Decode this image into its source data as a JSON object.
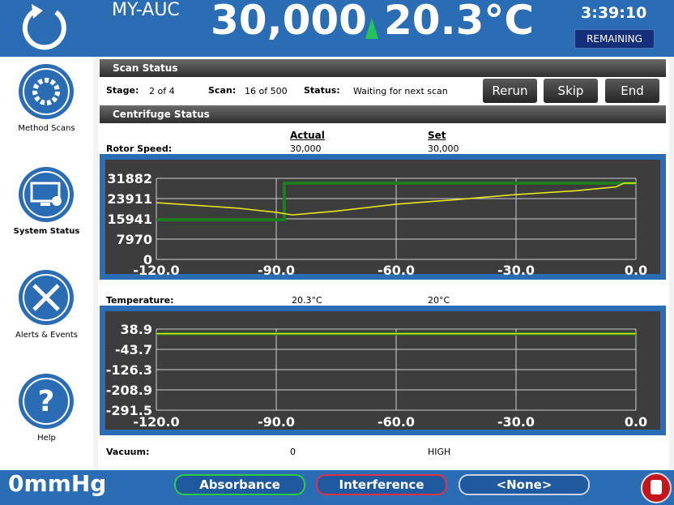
{
  "header": {
    "device": "MY-AUC",
    "speed": "30,000",
    "temperature": "20.3°C",
    "time": "3:39:10",
    "time_label": "REMAINING"
  },
  "nav": [
    {
      "label": "Method Scans"
    },
    {
      "label": "System Status"
    },
    {
      "label": "Alerts & Events"
    },
    {
      "label": "Help"
    }
  ],
  "scan_status": {
    "title": "Scan Status",
    "stage_label": "Stage:",
    "stage": "2 of 4",
    "scan_label": "Scan:",
    "scan": "16 of 500",
    "status_label": "Status:",
    "status": "Waiting for next scan",
    "buttons": [
      "Rerun",
      "Skip",
      "End"
    ]
  },
  "centrifuge_status": {
    "title": "Centrifuge Status",
    "columns": [
      "Actual",
      "Set"
    ],
    "rows": [
      {
        "label": "Rotor Speed:",
        "actual": "30,000",
        "set": "30,000"
      },
      {
        "label": "Temperature:",
        "actual": "20.3°C",
        "set": "20°C"
      },
      {
        "label": "Vacuum:",
        "actual": "0",
        "set": "HIGH"
      }
    ]
  },
  "rotor_chart": {
    "type": "line",
    "xlim": [
      -120,
      0
    ],
    "ylim": [
      0,
      31882
    ],
    "xticks": [
      {
        "value": -120,
        "label": "-120.0"
      },
      {
        "value": -90,
        "label": "-90.0"
      },
      {
        "value": -60,
        "label": "-60.0"
      },
      {
        "value": -30,
        "label": "-30.0"
      },
      {
        "value": 0,
        "label": "0.0"
      }
    ],
    "yticks": [
      0,
      7970,
      15941,
      23911,
      31882
    ],
    "grid": true,
    "series": [
      {
        "color": "#1e7d1e",
        "x": [
          -120,
          -88,
          -88,
          0
        ],
        "values": [
          15600,
          15600,
          30000,
          30000
        ]
      },
      {
        "color": "#e6e61e",
        "x": [
          -120,
          -100,
          -90,
          -86,
          -75,
          -60,
          -45,
          -30,
          -15,
          -5,
          -3,
          0
        ],
        "values": [
          22300,
          20200,
          18500,
          17500,
          19000,
          21700,
          23500,
          25500,
          27000,
          28500,
          30000,
          30000
        ]
      }
    ]
  },
  "temperature_chart": {
    "type": "line",
    "xlim": [
      -120,
      0
    ],
    "ylim": [
      -291.5,
      38.9
    ],
    "xticks": [
      {
        "value": -120,
        "label": "-120.0"
      },
      {
        "value": -90,
        "label": "-90.0"
      },
      {
        "value": -60,
        "label": "-60.0"
      },
      {
        "value": -30,
        "label": "-30.0"
      },
      {
        "value": 0,
        "label": "0.0"
      }
    ],
    "yticks": [
      -291.5,
      -208.9,
      -126.3,
      -43.7,
      38.9
    ],
    "grid": true,
    "series": [
      {
        "color": "#1e7d1e",
        "x": [
          -120,
          0
        ],
        "values": [
          20,
          20
        ]
      },
      {
        "color": "#e6e61e",
        "x": [
          -120,
          0
        ],
        "values": [
          20.3,
          20.3
        ]
      }
    ]
  },
  "footer": {
    "pressure": "0mmHg",
    "buttons": [
      "Absorbance",
      "Interference",
      "<None>"
    ]
  }
}
